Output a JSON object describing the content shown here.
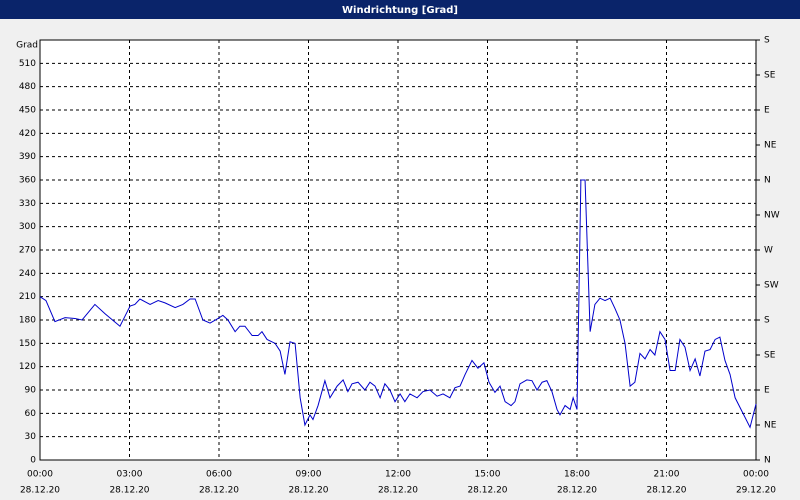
{
  "chart_data": {
    "type": "line",
    "title": "Windrichtung [Grad]",
    "y_label": "Grad",
    "x": [
      0,
      0.2,
      0.5,
      0.84,
      1.17,
      1.41,
      1.84,
      2.18,
      2.68,
      3.02,
      3.18,
      3.35,
      3.69,
      3.96,
      4.19,
      4.53,
      4.79,
      5.03,
      5.2,
      5.46,
      5.7,
      5.97,
      6.13,
      6.3,
      6.54,
      6.7,
      6.87,
      7.11,
      7.31,
      7.44,
      7.61,
      7.88,
      8.05,
      8.21,
      8.38,
      8.55,
      8.72,
      8.88,
      9.05,
      9.15,
      9.32,
      9.55,
      9.72,
      9.96,
      10.16,
      10.32,
      10.46,
      10.66,
      10.89,
      11.06,
      11.23,
      11.4,
      11.56,
      11.73,
      11.9,
      12.07,
      12.23,
      12.4,
      12.64,
      12.84,
      13.07,
      13.31,
      13.51,
      13.74,
      13.91,
      14.08,
      14.25,
      14.48,
      14.68,
      14.88,
      15.05,
      15.25,
      15.42,
      15.59,
      15.79,
      15.92,
      16.09,
      16.32,
      16.49,
      16.66,
      16.83,
      16.99,
      17.16,
      17.33,
      17.43,
      17.6,
      17.77,
      17.87,
      18.0,
      18.13,
      18.27,
      18.44,
      18.6,
      18.77,
      18.94,
      19.11,
      19.27,
      19.44,
      19.61,
      19.78,
      19.94,
      20.11,
      20.28,
      20.45,
      20.61,
      20.78,
      20.95,
      21.12,
      21.29,
      21.45,
      21.62,
      21.79,
      21.96,
      22.12,
      22.29,
      22.46,
      22.63,
      22.79,
      22.96,
      23.13,
      23.3,
      23.63,
      23.8,
      24.0
    ],
    "series": [
      {
        "name": "Windrichtung",
        "color": "#0000cc",
        "values": [
          210,
          205,
          178,
          183,
          182,
          180,
          200,
          188,
          172,
          198,
          200,
          207,
          200,
          205,
          202,
          196,
          200,
          207,
          207,
          180,
          176,
          182,
          186,
          180,
          165,
          172,
          172,
          160,
          160,
          165,
          155,
          150,
          140,
          110,
          152,
          150,
          80,
          45,
          58,
          52,
          70,
          102,
          80,
          95,
          103,
          88,
          98,
          100,
          90,
          100,
          95,
          80,
          98,
          90,
          75,
          85,
          75,
          85,
          80,
          88,
          90,
          82,
          85,
          80,
          93,
          95,
          110,
          128,
          118,
          125,
          100,
          87,
          95,
          75,
          70,
          75,
          98,
          103,
          102,
          90,
          100,
          102,
          88,
          65,
          58,
          70,
          65,
          80,
          65,
          360,
          360,
          165,
          200,
          208,
          205,
          208,
          195,
          180,
          150,
          95,
          100,
          137,
          130,
          142,
          135,
          165,
          155,
          115,
          115,
          155,
          145,
          115,
          130,
          108,
          140,
          142,
          155,
          158,
          128,
          110,
          80,
          55,
          42,
          72
        ]
      }
    ],
    "xlim": [
      0,
      24
    ],
    "xticks": [
      {
        "value": 0,
        "label": "00:00",
        "date": "28.12.20"
      },
      {
        "value": 3,
        "label": "03:00",
        "date": "28.12.20"
      },
      {
        "value": 6,
        "label": "06:00",
        "date": "28.12.20"
      },
      {
        "value": 9,
        "label": "09:00",
        "date": "28.12.20"
      },
      {
        "value": 12,
        "label": "12:00",
        "date": "28.12.20"
      },
      {
        "value": 15,
        "label": "15:00",
        "date": "28.12.20"
      },
      {
        "value": 18,
        "label": "18:00",
        "date": "28.12.20"
      },
      {
        "value": 21,
        "label": "21:00",
        "date": "28.12.20"
      },
      {
        "value": 24,
        "label": "00:00",
        "date": "29.12.20"
      }
    ],
    "ylim": [
      0,
      540
    ],
    "yticks": [
      0,
      30,
      60,
      90,
      120,
      150,
      180,
      210,
      240,
      270,
      300,
      330,
      360,
      390,
      420,
      450,
      480,
      510
    ],
    "y2lim": [
      0,
      540
    ],
    "y2ticks": [
      {
        "value": 0,
        "label": "N"
      },
      {
        "value": 45,
        "label": "NE"
      },
      {
        "value": 90,
        "label": "E"
      },
      {
        "value": 135,
        "label": "SE"
      },
      {
        "value": 180,
        "label": "S"
      },
      {
        "value": 225,
        "label": "SW"
      },
      {
        "value": 270,
        "label": "W"
      },
      {
        "value": 315,
        "label": "NW"
      },
      {
        "value": 360,
        "label": "N"
      },
      {
        "value": 405,
        "label": "NE"
      },
      {
        "value": 450,
        "label": "E"
      },
      {
        "value": 495,
        "label": "SE"
      },
      {
        "value": 540,
        "label": "S"
      }
    ],
    "grid": true
  }
}
